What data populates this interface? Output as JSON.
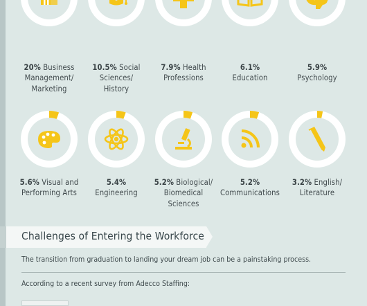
{
  "chart_data": {
    "type": "donut",
    "series": [
      {
        "percent": "20%",
        "label_lines": [
          "Business",
          "Management/",
          "Marketing"
        ],
        "value": 20,
        "icon": "building-icon"
      },
      {
        "percent": "10.5%",
        "label_lines": [
          "Social",
          "Sciences/",
          "History"
        ],
        "value": 10.5,
        "icon": "graduation-cap-icon"
      },
      {
        "percent": "7.9%",
        "label_lines": [
          "Health",
          "Professions"
        ],
        "value": 7.9,
        "icon": "medical-cross-icon"
      },
      {
        "percent": "6.1%",
        "label_lines": [
          "",
          "Education"
        ],
        "value": 6.1,
        "icon": "open-book-icon"
      },
      {
        "percent": "5.9%",
        "label_lines": [
          "",
          "Psychology"
        ],
        "value": 5.9,
        "icon": "brain-icon"
      },
      {
        "percent": "5.6%",
        "label_lines": [
          "Visual and",
          "Performing Arts"
        ],
        "value": 5.6,
        "icon": "paint-palette-icon"
      },
      {
        "percent": "5.4%",
        "label_lines": [
          "",
          "Engineering"
        ],
        "value": 5.4,
        "icon": "atom-icon"
      },
      {
        "percent": "5.2%",
        "label_lines": [
          "Biological/",
          "Biomedical",
          "Sciences"
        ],
        "value": 5.2,
        "icon": "microscope-icon"
      },
      {
        "percent": "5.2%",
        "label_lines": [
          "",
          "Communications"
        ],
        "value": 5.2,
        "icon": "rss-icon"
      },
      {
        "percent": "3.2%",
        "label_lines": [
          "English/",
          "Literature"
        ],
        "value": 3.2,
        "icon": "pen-icon"
      }
    ]
  },
  "colors": {
    "accent": "#f5c518",
    "ring": "#ffffff",
    "text": "#424b4e"
  },
  "challenges": {
    "title": "Challenges of Entering the Workforce",
    "intro": "The transition from graduation to landing your dream job can be a painstaking process.",
    "survey": "According to a recent survey from Adecco Staffing:"
  }
}
